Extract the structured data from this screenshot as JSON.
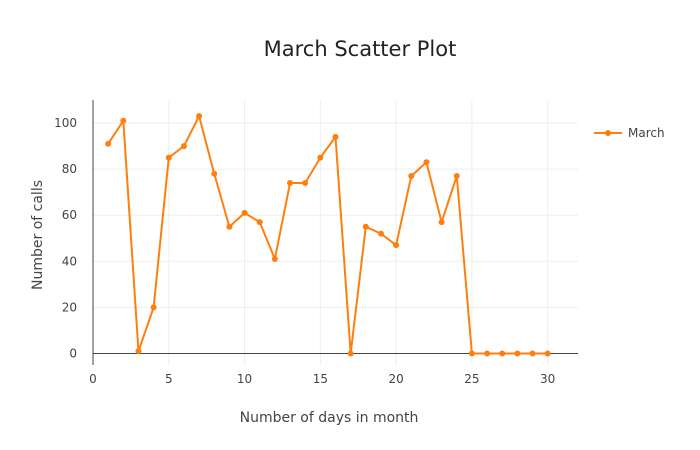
{
  "chart_data": {
    "type": "line",
    "title": "March Scatter Plot",
    "xlabel": "Number of days in month",
    "ylabel": "Number of calls",
    "xlim": [
      0,
      32
    ],
    "ylim": [
      -5,
      110
    ],
    "xticks": [
      0,
      5,
      10,
      15,
      20,
      25,
      30
    ],
    "yticks": [
      0,
      20,
      40,
      60,
      80,
      100
    ],
    "grid": true,
    "legend_position": "top-right",
    "color": "#ff7f0e",
    "series": [
      {
        "name": "March",
        "x": [
          1,
          2,
          3,
          4,
          5,
          6,
          7,
          8,
          9,
          10,
          11,
          12,
          13,
          14,
          15,
          16,
          17,
          18,
          19,
          20,
          21,
          22,
          23,
          24,
          25,
          26,
          27,
          28,
          29,
          30
        ],
        "y": [
          91,
          101,
          1,
          20,
          85,
          90,
          103,
          78,
          55,
          61,
          57,
          41,
          74,
          74,
          85,
          94,
          0,
          55,
          52,
          47,
          77,
          83,
          57,
          77,
          0,
          0,
          0,
          0,
          0,
          0
        ]
      }
    ]
  }
}
